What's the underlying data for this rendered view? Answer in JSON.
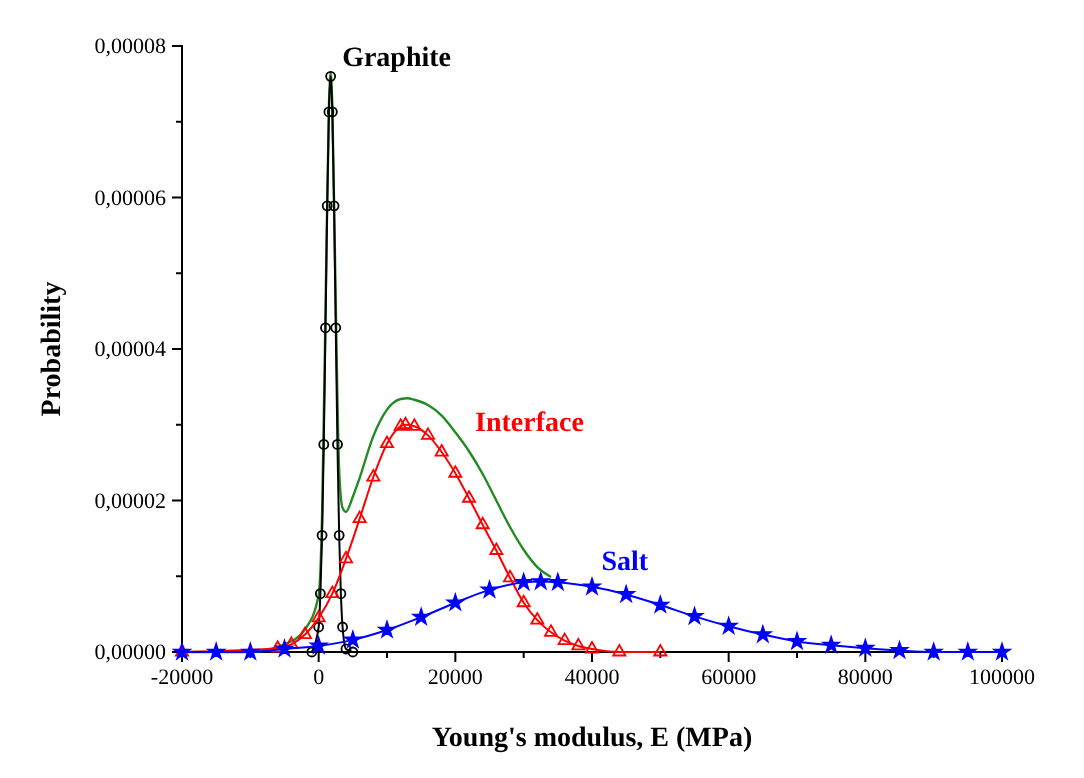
{
  "chart_data": {
    "type": "line",
    "xlabel": "Young's modulus, E (MPa)",
    "ylabel": "Probability",
    "xlim": [
      -20000,
      100000
    ],
    "ylim": [
      0,
      8e-05
    ],
    "xticks": [
      -20000,
      {
        "value": -10000,
        "label": null
      },
      0,
      {
        "value": 10000,
        "label": null
      },
      20000,
      {
        "value": 30000,
        "label": null
      },
      40000,
      {
        "value": 50000,
        "label": null
      },
      60000,
      {
        "value": 70000,
        "label": null
      },
      80000,
      {
        "value": 90000,
        "label": null
      },
      100000
    ],
    "yticks": [
      {
        "value": 0,
        "label": "0,00000"
      },
      {
        "value": 1e-05,
        "label": null
      },
      {
        "value": 2e-05,
        "label": "0,00002"
      },
      {
        "value": 3e-05,
        "label": null
      },
      {
        "value": 4e-05,
        "label": "0,00004"
      },
      {
        "value": 5e-05,
        "label": null
      },
      {
        "value": 6e-05,
        "label": "0,00006"
      },
      {
        "value": 7e-05,
        "label": null
      },
      {
        "value": 8e-05,
        "label": "0,00008"
      }
    ],
    "grid": false,
    "legend": false,
    "series": [
      {
        "color": "#228b22",
        "marker": "none",
        "x": [
          -20000,
          -10000,
          -5000,
          -2000,
          0,
          500,
          1000,
          1500,
          1750,
          2000,
          2500,
          3000,
          3500,
          4000,
          5000,
          6000,
          8000,
          10000,
          12000,
          13000,
          14000,
          16000,
          18000,
          20000,
          22000,
          24000,
          26000,
          28000,
          30000,
          32000,
          34000
        ],
        "values": [
          0,
          0,
          1e-06,
          3e-06,
          7.5e-06,
          1.8e-05,
          4.5e-05,
          7.2e-05,
          7.65e-05,
          7.2e-05,
          4.6e-05,
          2.4e-05,
          1.9e-05,
          1.85e-05,
          2.05e-05,
          2.3e-05,
          2.85e-05,
          3.2e-05,
          3.34e-05,
          3.35e-05,
          3.33e-05,
          3.26e-05,
          3.12e-05,
          2.9e-05,
          2.65e-05,
          2.35e-05,
          2e-05,
          1.65e-05,
          1.35e-05,
          1.12e-05,
          9.9e-06
        ]
      },
      {
        "name": "Graphite",
        "color": "#000000",
        "marker": "circle",
        "x": [
          -1000,
          -500,
          0,
          250,
          500,
          750,
          1000,
          1250,
          1500,
          1750,
          2000,
          2250,
          2500,
          2750,
          3000,
          3250,
          3500,
          4000,
          5000
        ],
        "values": [
          0,
          null,
          3.3e-06,
          7.7e-06,
          1.54e-05,
          2.74e-05,
          4.28e-05,
          5.89e-05,
          7.13e-05,
          7.6e-05,
          7.13e-05,
          5.89e-05,
          4.28e-05,
          2.74e-05,
          1.54e-05,
          7.7e-06,
          3.3e-06,
          4e-07,
          0
        ]
      },
      {
        "name": "Interface",
        "color": "#ff0000",
        "marker": "triangle",
        "x": [
          -20000,
          -10000,
          -6000,
          -4000,
          -2000,
          0,
          2000,
          4000,
          6000,
          8000,
          10000,
          12000,
          12700,
          14000,
          16000,
          18000,
          20000,
          22000,
          24000,
          26000,
          28000,
          30000,
          32000,
          34000,
          36000,
          38000,
          40000,
          44000,
          50000
        ],
        "values": [
          0,
          null,
          5e-07,
          1e-06,
          2.3e-06,
          4.5e-06,
          7.7e-06,
          1.23e-05,
          1.76e-05,
          2.31e-05,
          2.75e-05,
          2.98e-05,
          3e-05,
          2.98e-05,
          2.86e-05,
          2.64e-05,
          2.36e-05,
          2.03e-05,
          1.68e-05,
          1.34e-05,
          9.8e-06,
          6.5e-06,
          4.2e-06,
          2.6e-06,
          1.5e-06,
          8e-07,
          4e-07,
          0,
          0
        ]
      },
      {
        "name": "Salt",
        "color": "#0000ff",
        "marker": "star",
        "x": [
          -20000,
          -15000,
          -10000,
          -5000,
          0,
          5000,
          10000,
          15000,
          20000,
          25000,
          30000,
          32500,
          35000,
          40000,
          45000,
          50000,
          55000,
          60000,
          65000,
          70000,
          75000,
          80000,
          85000,
          90000,
          95000,
          100000
        ],
        "values": [
          0,
          0,
          0,
          4e-07,
          8e-07,
          1.6e-06,
          2.9e-06,
          4.6e-06,
          6.5e-06,
          8.2e-06,
          9.2e-06,
          9.3e-06,
          9.2e-06,
          8.6e-06,
          7.6e-06,
          6.2e-06,
          4.7e-06,
          3.4e-06,
          2.3e-06,
          1.4e-06,
          9e-07,
          5e-07,
          2e-07,
          0,
          0,
          0
        ]
      }
    ]
  }
}
